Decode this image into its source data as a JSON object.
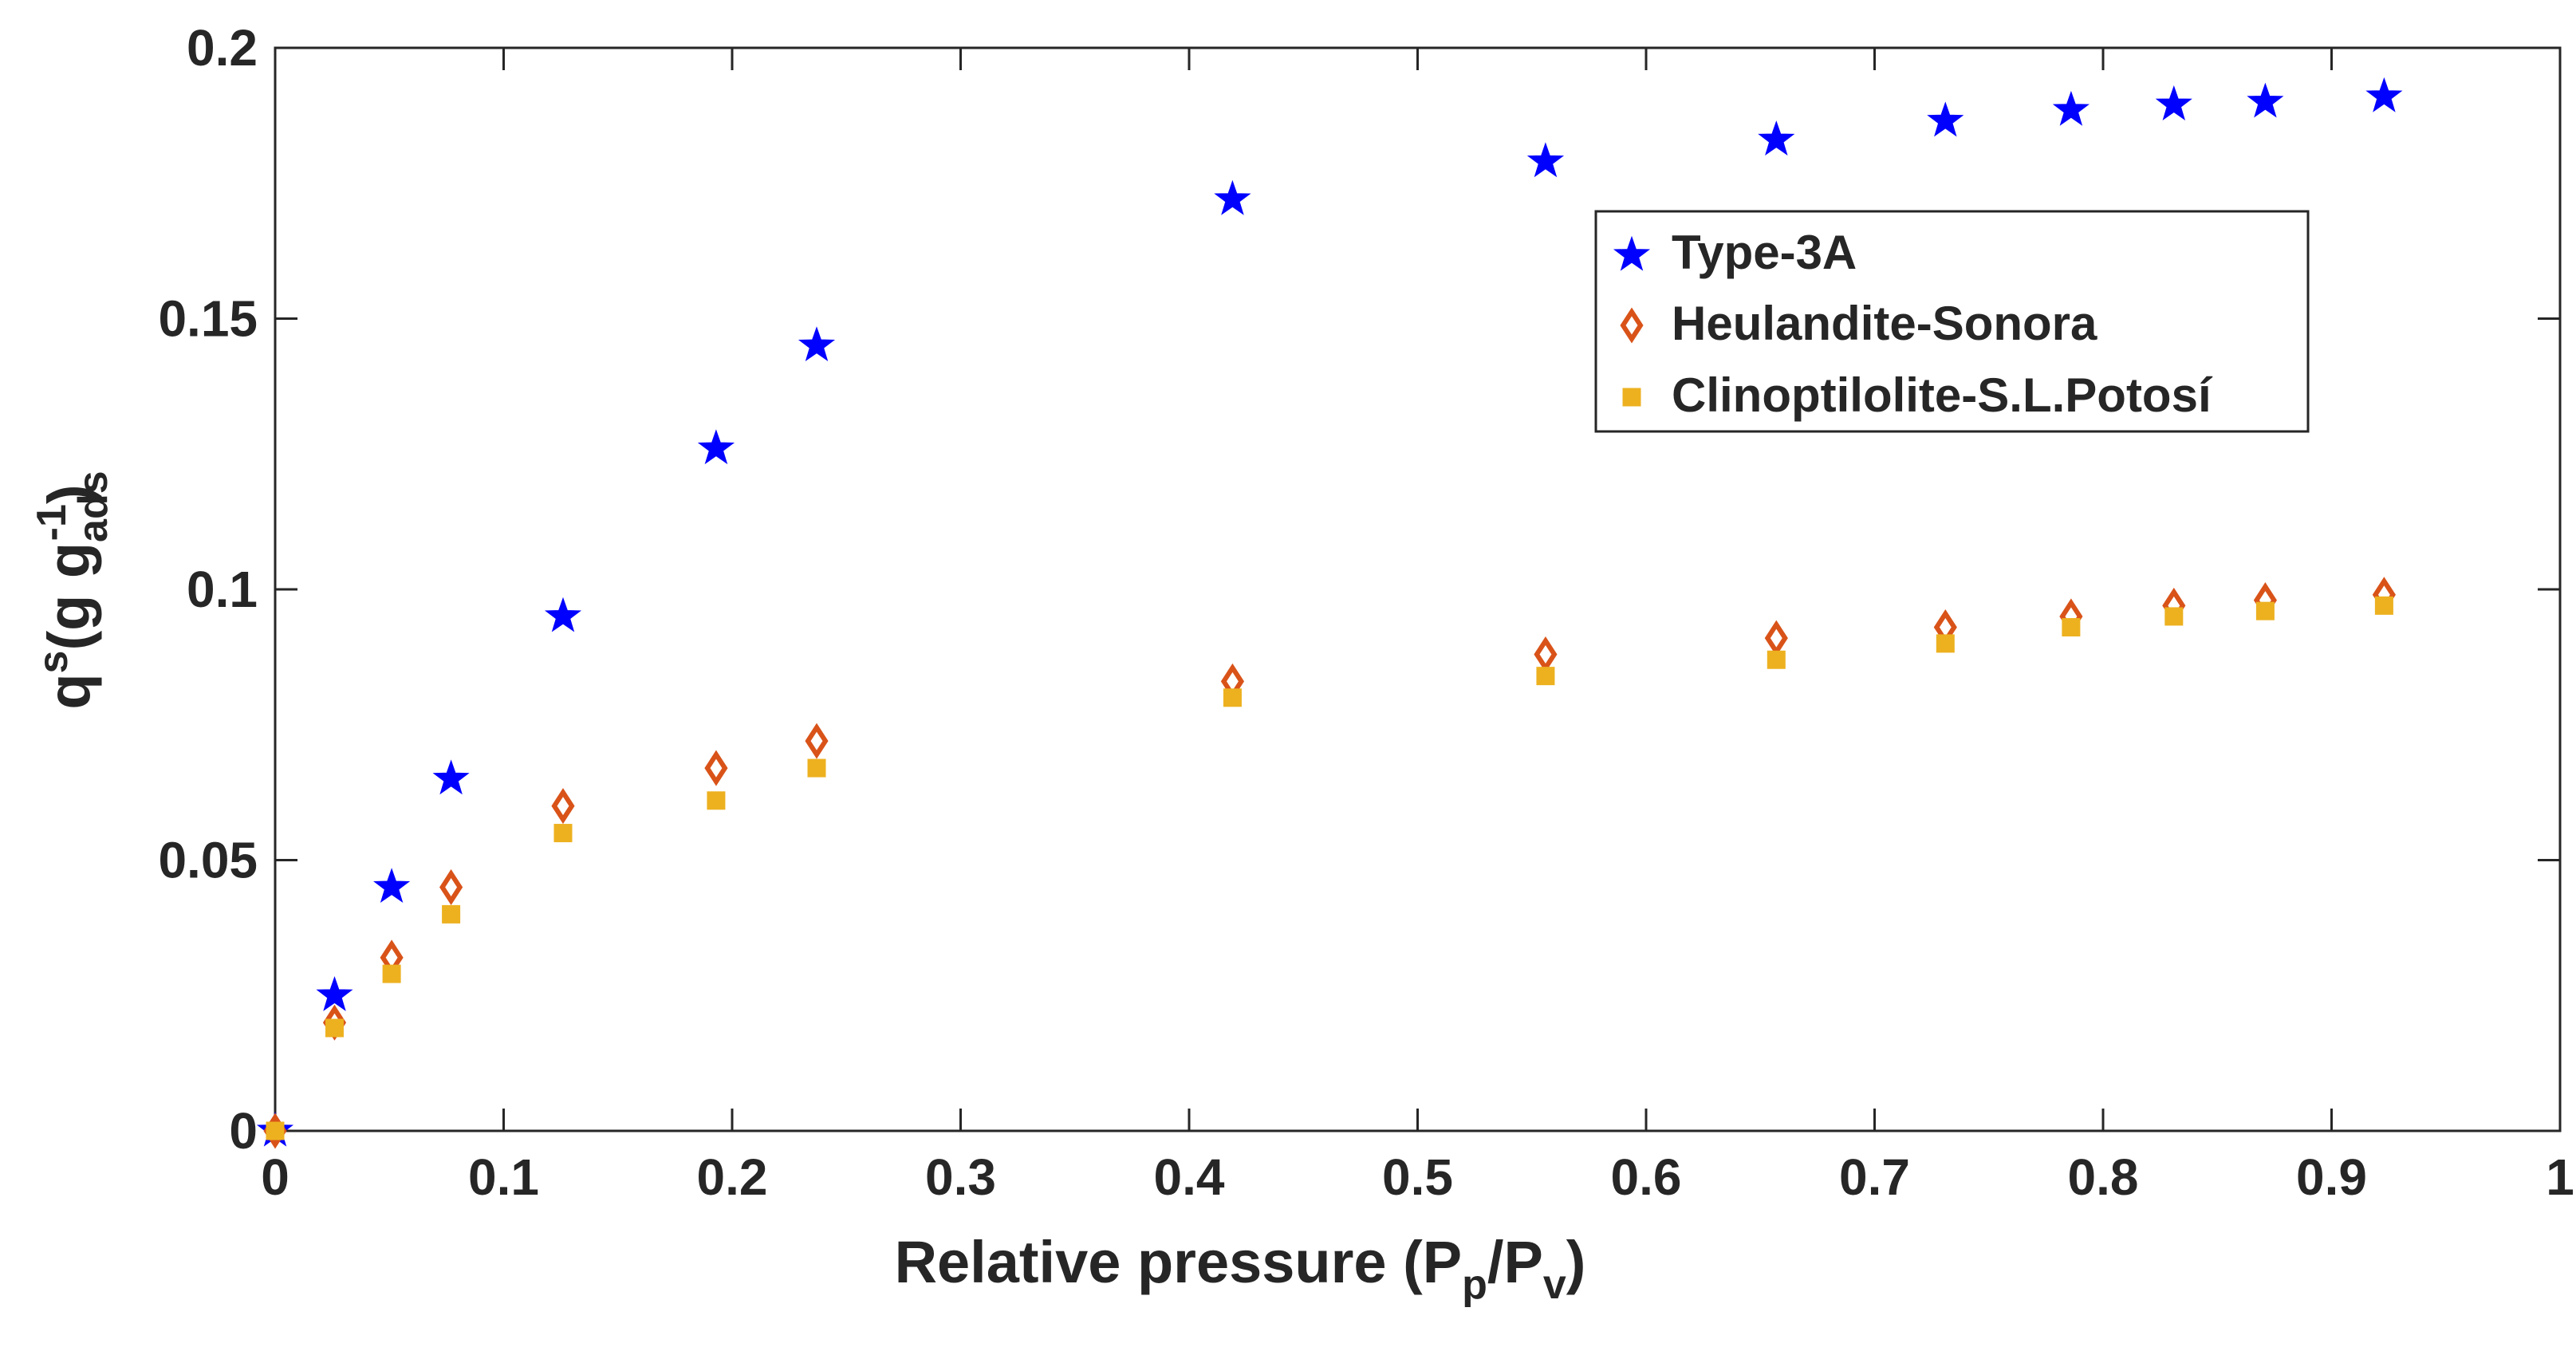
{
  "chart_data": {
    "type": "scatter",
    "title": "",
    "xlabel": "Relative pressure (P",
    "xlabel_sub1": "p",
    "xlabel_mid": "/P",
    "xlabel_sub2": "v",
    "xlabel_end": ")",
    "ylabel": "q",
    "ylabel_sup": "s",
    "ylabel_mid": "(g g",
    "ylabel_sub": "ads",
    "ylabel_sup2": "-1",
    "ylabel_end": ")",
    "xlim": [
      0,
      1
    ],
    "ylim": [
      0,
      0.2
    ],
    "xticks": [
      0,
      0.1,
      0.2,
      0.3,
      0.4,
      0.5,
      0.6,
      0.7,
      0.8,
      0.9,
      1
    ],
    "xtick_labels": [
      "0",
      "0.1",
      "0.2",
      "0.3",
      "0.4",
      "0.5",
      "0.6",
      "0.7",
      "0.8",
      "0.9",
      "1"
    ],
    "yticks": [
      0,
      0.05,
      0.1,
      0.15,
      0.2
    ],
    "ytick_labels": [
      "0",
      "0.05",
      "0.1",
      "0.15",
      "0.2"
    ],
    "grid": false,
    "legend_position": "upper-right-inside",
    "series": [
      {
        "name": "Type-3A",
        "marker": "star",
        "color": "#0000FF",
        "x": [
          0.0,
          0.026,
          0.051,
          0.077,
          0.126,
          0.193,
          0.237,
          0.419,
          0.556,
          0.657,
          0.731,
          0.786,
          0.831,
          0.871,
          0.923
        ],
        "y": [
          0.0,
          0.025,
          0.045,
          0.065,
          0.095,
          0.126,
          0.145,
          0.172,
          0.179,
          0.183,
          0.1865,
          0.1885,
          0.1895,
          0.19,
          0.191
        ]
      },
      {
        "name": "Heulandite-Sonora",
        "marker": "diamond",
        "color": "#D95319",
        "x": [
          0.0,
          0.026,
          0.051,
          0.077,
          0.126,
          0.193,
          0.237,
          0.419,
          0.556,
          0.657,
          0.731,
          0.786,
          0.831,
          0.871,
          0.923
        ],
        "y": [
          0.0,
          0.02,
          0.032,
          0.045,
          0.06,
          0.067,
          0.072,
          0.083,
          0.088,
          0.091,
          0.093,
          0.095,
          0.097,
          0.098,
          0.099
        ]
      },
      {
        "name": "Clinoptilolite-S.L.Potosí",
        "marker": "square",
        "color": "#EDB120",
        "x": [
          0.0,
          0.026,
          0.051,
          0.077,
          0.126,
          0.193,
          0.237,
          0.419,
          0.556,
          0.657,
          0.731,
          0.786,
          0.831,
          0.871,
          0.923
        ],
        "y": [
          0.0,
          0.019,
          0.029,
          0.04,
          0.055,
          0.061,
          0.067,
          0.08,
          0.084,
          0.087,
          0.09,
          0.093,
          0.095,
          0.096,
          0.097
        ]
      }
    ]
  }
}
